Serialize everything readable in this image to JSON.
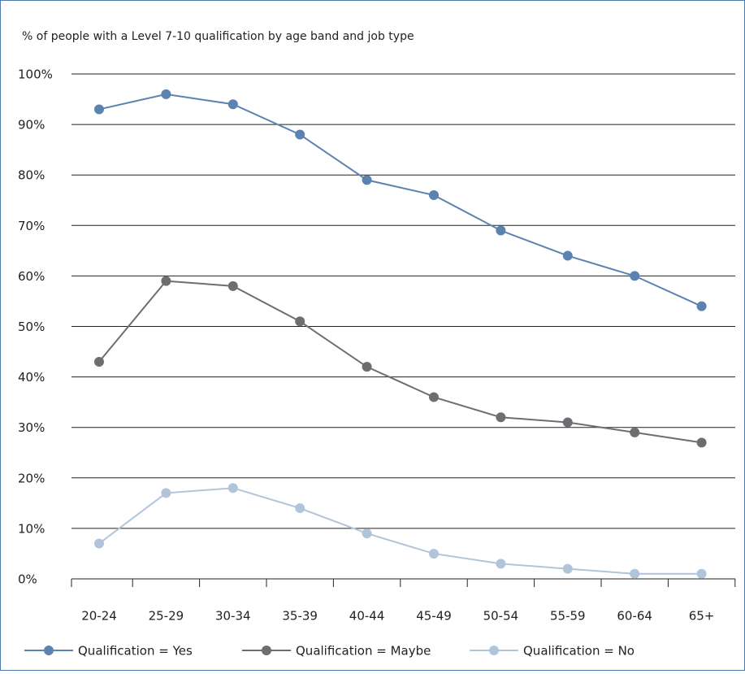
{
  "chart_data": {
    "type": "line",
    "title": "% of people with a Level 7-10 qualification by age band and job type",
    "categories": [
      "20-24",
      "25-29",
      "30-34",
      "35-39",
      "40-44",
      "45-49",
      "50-54",
      "55-59",
      "60-64",
      "65+"
    ],
    "series": [
      {
        "name": "Qualification = Yes",
        "color": "#5b82b0",
        "values": [
          93,
          96,
          94,
          88,
          79,
          76,
          69,
          64,
          60,
          54
        ]
      },
      {
        "name": "Qualification = Maybe",
        "color": "#6d6e71",
        "values": [
          43,
          59,
          58,
          51,
          42,
          36,
          32,
          31,
          29,
          27
        ]
      },
      {
        "name": "Qualification = No",
        "color": "#b0c4da",
        "values": [
          7,
          17,
          18,
          14,
          9,
          5,
          3,
          2,
          1,
          1
        ]
      }
    ],
    "ylim": [
      0,
      100
    ],
    "yticks": [
      {
        "value": 0,
        "label": "0%"
      },
      {
        "value": 10,
        "label": "10%"
      },
      {
        "value": 20,
        "label": "20%"
      },
      {
        "value": 30,
        "label": "30%"
      },
      {
        "value": 40,
        "label": "40%"
      },
      {
        "value": 50,
        "label": "50%"
      },
      {
        "value": 60,
        "label": "60%"
      },
      {
        "value": 70,
        "label": "70%"
      },
      {
        "value": 80,
        "label": "80%"
      },
      {
        "value": 90,
        "label": "90%"
      },
      {
        "value": 100,
        "label": "100%"
      }
    ],
    "grid": true
  }
}
